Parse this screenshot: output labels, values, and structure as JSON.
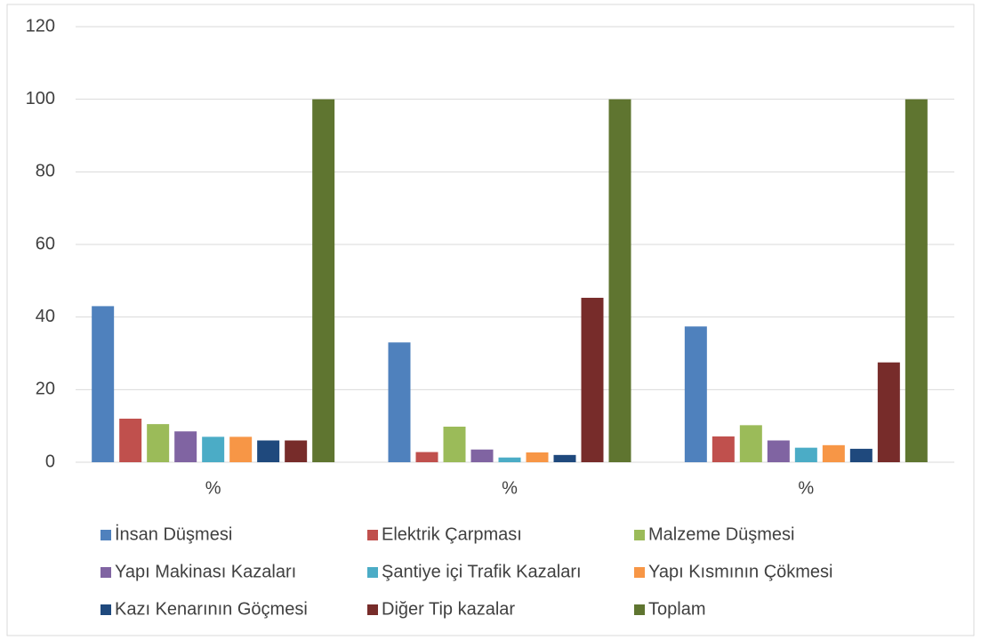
{
  "chart_data": {
    "type": "bar",
    "categories": [
      "%",
      "%",
      "%"
    ],
    "series": [
      {
        "name": "İnsan Düşmesi",
        "color": "#4f81bd",
        "values": [
          43,
          33,
          37.4
        ]
      },
      {
        "name": "Elektrik Çarpması",
        "color": "#c0504d",
        "values": [
          12,
          2.8,
          7.1
        ]
      },
      {
        "name": "Malzeme Düşmesi",
        "color": "#9bbb59",
        "values": [
          10.5,
          9.8,
          10.2
        ]
      },
      {
        "name": "Yapı Makinası Kazaları",
        "color": "#8064a2",
        "values": [
          8.5,
          3.5,
          6
        ]
      },
      {
        "name": "Şantiye içi Trafik Kazaları",
        "color": "#4bacc6",
        "values": [
          7,
          1.3,
          4
        ]
      },
      {
        "name": "Yapı Kısmının Çökmesi",
        "color": "#f79646",
        "values": [
          7,
          2.7,
          4.7
        ]
      },
      {
        "name": "Kazı Kenarının Göçmesi",
        "color": "#1f497d",
        "values": [
          6,
          2,
          3.7
        ]
      },
      {
        "name": "Diğer Tip kazalar",
        "color": "#772c2a",
        "values": [
          6,
          45.3,
          27.5
        ]
      },
      {
        "name": "Toplam",
        "color": "#5f7530",
        "values": [
          100,
          100,
          100
        ]
      }
    ],
    "ylim": [
      0,
      120
    ],
    "yticks": [
      0,
      20,
      40,
      60,
      80,
      100,
      120
    ],
    "grid": true,
    "legend": "bottom"
  }
}
